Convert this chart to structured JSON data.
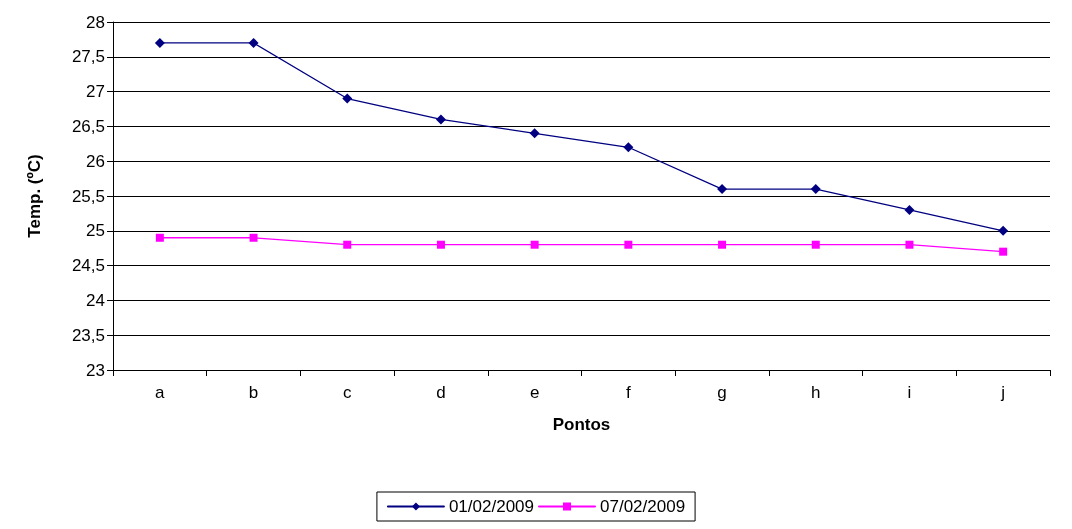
{
  "chart_data": {
    "type": "line",
    "xlabel": "Pontos",
    "ylabel": "Temp. (ºC)",
    "categories": [
      "a",
      "b",
      "c",
      "d",
      "e",
      "f",
      "g",
      "h",
      "i",
      "j"
    ],
    "series": [
      {
        "name": "01/02/2009",
        "color": "#000080",
        "marker": "diamond",
        "values": [
          27.7,
          27.7,
          26.9,
          26.6,
          26.4,
          26.2,
          25.6,
          25.6,
          25.3,
          25.0
        ]
      },
      {
        "name": "07/02/2009",
        "color": "#ff00ff",
        "marker": "square",
        "values": [
          24.9,
          24.9,
          24.8,
          24.8,
          24.8,
          24.8,
          24.8,
          24.8,
          24.8,
          24.7
        ]
      }
    ],
    "ylim": [
      23,
      28
    ],
    "yticks": [
      23,
      {
        "value": 23.5,
        "label": "23,5"
      },
      24,
      {
        "value": 24.5,
        "label": "24,5"
      },
      25,
      {
        "value": 25.5,
        "label": "25,5"
      },
      26,
      {
        "value": 26.5,
        "label": "26,5"
      },
      27,
      {
        "value": 27.5,
        "label": "27,5"
      },
      28
    ],
    "grid": "y",
    "legend": "bottom",
    "line_style": "solid"
  }
}
